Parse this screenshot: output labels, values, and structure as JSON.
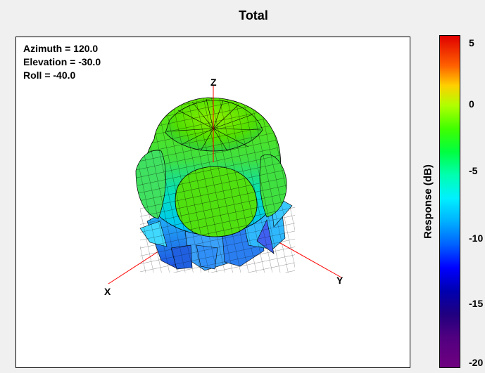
{
  "title": "Total",
  "view": {
    "azimuth": "Azimuth = 120.0",
    "elevation": "Elevation = -30.0",
    "roll": "Roll = -40.0"
  },
  "axes": {
    "x": "X",
    "y": "Y",
    "z": "Z"
  },
  "colorbar": {
    "label": "Response  (dB)",
    "ticks": [
      "5",
      "0",
      "-5",
      "-10",
      "-15",
      "-20"
    ]
  },
  "colors": {
    "axis_line": "#ff0000",
    "pattern_mesh": "#000000"
  }
}
